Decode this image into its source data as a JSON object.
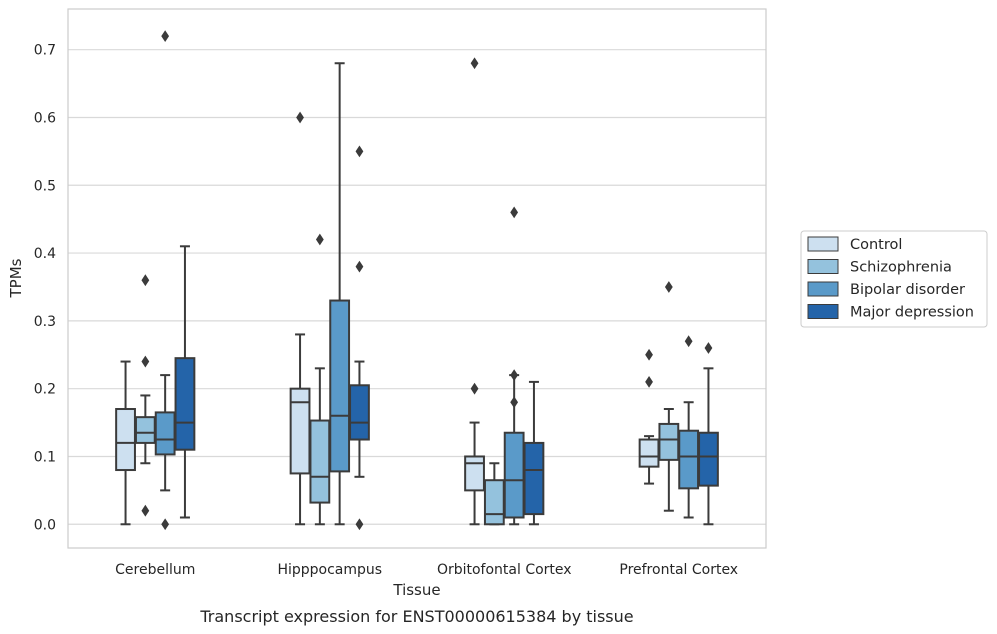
{
  "chart_data": {
    "type": "box",
    "caption": "Transcript expression for ENST00000615384 by tissue",
    "xlabel": "Tissue",
    "ylabel": "TPMs",
    "ylim": [
      -0.035,
      0.76
    ],
    "yticks": [
      0.0,
      0.1,
      0.2,
      0.3,
      0.4,
      0.5,
      0.6,
      0.7
    ],
    "ytick_labels": [
      "0.0",
      "0.1",
      "0.2",
      "0.3",
      "0.4",
      "0.5",
      "0.6",
      "0.7"
    ],
    "grid": "horizontal",
    "legend_position": "outside right",
    "categories": [
      "Cerebellum",
      "Hipppocampus",
      "Orbitofontal Cortex",
      "Prefrontal Cortex"
    ],
    "series": [
      {
        "name": "Control",
        "color": "#cde0f0",
        "boxes": [
          {
            "whislo": 0.0,
            "q1": 0.08,
            "med": 0.12,
            "q3": 0.17,
            "whishi": 0.24,
            "fliers": []
          },
          {
            "whislo": 0.0,
            "q1": 0.075,
            "med": 0.18,
            "q3": 0.2,
            "whishi": 0.28,
            "fliers": [
              0.6
            ]
          },
          {
            "whislo": 0.0,
            "q1": 0.05,
            "med": 0.09,
            "q3": 0.1,
            "whishi": 0.15,
            "fliers": [
              0.2,
              0.68
            ]
          },
          {
            "whislo": 0.06,
            "q1": 0.085,
            "med": 0.1,
            "q3": 0.125,
            "whishi": 0.13,
            "fliers": [
              0.21,
              0.25
            ]
          }
        ]
      },
      {
        "name": "Schizophrenia",
        "color": "#94c2dd",
        "boxes": [
          {
            "whislo": 0.09,
            "q1": 0.12,
            "med": 0.135,
            "q3": 0.158,
            "whishi": 0.19,
            "fliers": [
              0.02,
              0.24,
              0.36
            ]
          },
          {
            "whislo": 0.0,
            "q1": 0.032,
            "med": 0.07,
            "q3": 0.153,
            "whishi": 0.23,
            "fliers": [
              0.42
            ]
          },
          {
            "whislo": 0.0,
            "q1": 0.0,
            "med": 0.015,
            "q3": 0.065,
            "whishi": 0.09,
            "fliers": []
          },
          {
            "whislo": 0.02,
            "q1": 0.095,
            "med": 0.125,
            "q3": 0.148,
            "whishi": 0.17,
            "fliers": [
              0.35
            ]
          }
        ]
      },
      {
        "name": "Bipolar disorder",
        "color": "#5a9ac9",
        "boxes": [
          {
            "whislo": 0.05,
            "q1": 0.103,
            "med": 0.125,
            "q3": 0.165,
            "whishi": 0.22,
            "fliers": [
              0.0,
              0.72
            ]
          },
          {
            "whislo": 0.0,
            "q1": 0.078,
            "med": 0.16,
            "q3": 0.33,
            "whishi": 0.68,
            "fliers": []
          },
          {
            "whislo": 0.0,
            "q1": 0.01,
            "med": 0.065,
            "q3": 0.135,
            "whishi": 0.22,
            "fliers": [
              0.18,
              0.22,
              0.46
            ]
          },
          {
            "whislo": 0.01,
            "q1": 0.053,
            "med": 0.1,
            "q3": 0.138,
            "whishi": 0.18,
            "fliers": [
              0.27
            ]
          }
        ]
      },
      {
        "name": "Major depression",
        "color": "#2464a9",
        "boxes": [
          {
            "whislo": 0.01,
            "q1": 0.11,
            "med": 0.15,
            "q3": 0.245,
            "whishi": 0.41,
            "fliers": []
          },
          {
            "whislo": 0.07,
            "q1": 0.125,
            "med": 0.15,
            "q3": 0.205,
            "whishi": 0.24,
            "fliers": [
              0.0,
              0.38,
              0.55
            ]
          },
          {
            "whislo": 0.0,
            "q1": 0.015,
            "med": 0.08,
            "q3": 0.12,
            "whishi": 0.21,
            "fliers": []
          },
          {
            "whislo": 0.0,
            "q1": 0.057,
            "med": 0.1,
            "q3": 0.135,
            "whishi": 0.23,
            "fliers": [
              0.26
            ]
          }
        ]
      }
    ]
  },
  "colors": {
    "grid": "#d9d9d9",
    "spine": "#cccccc",
    "edge": "#3b3b3b"
  }
}
